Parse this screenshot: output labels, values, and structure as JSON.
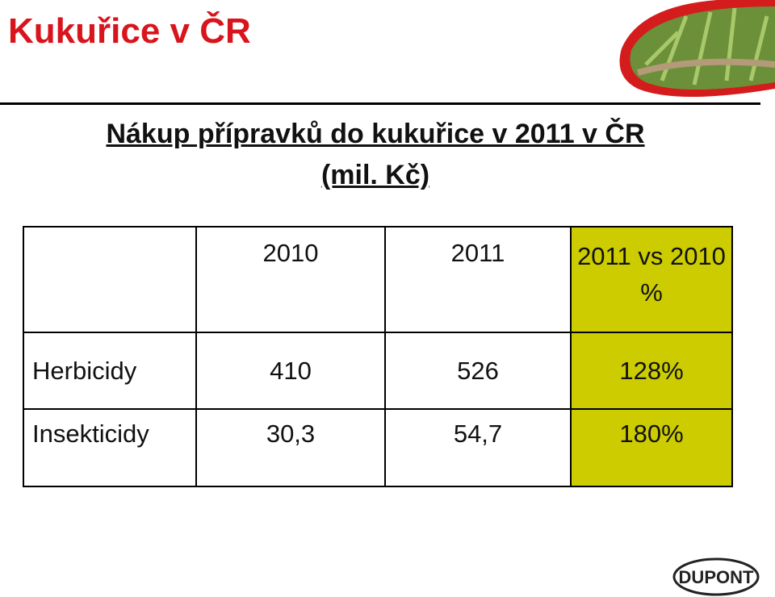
{
  "header": {
    "title": "Kukuřice v ČR",
    "subtitle_lines": [
      "Nákup přípravků do kukuřice v 2011 v ČR",
      "(mil. Kč)"
    ]
  },
  "table": {
    "columns": [
      "2010",
      "2011",
      "2011 vs 2010 %"
    ],
    "rows": [
      {
        "label": "Herbicidy",
        "cells": [
          "410",
          "526",
          "128%"
        ]
      },
      {
        "label": "Insekticidy",
        "cells": [
          "30,3",
          "54,7",
          "180%"
        ]
      }
    ]
  },
  "logo": "DUPONT"
}
